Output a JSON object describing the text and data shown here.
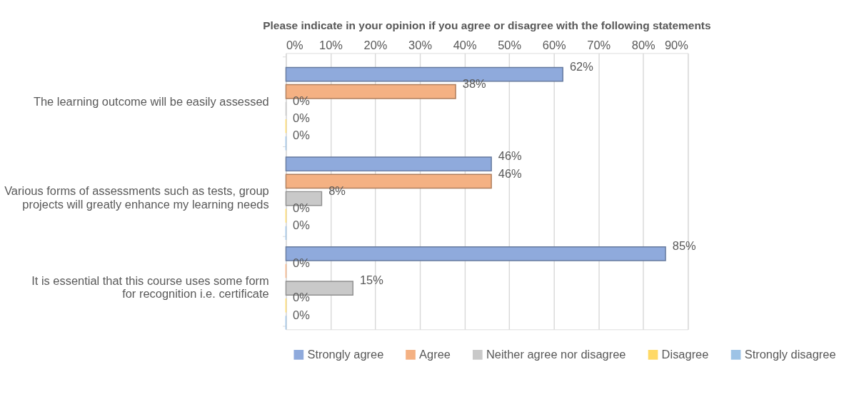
{
  "chart_data": {
    "type": "bar",
    "orientation": "horizontal",
    "title": "Please indicate in your opinion if you agree or disagree with the following statements",
    "categories": [
      "The learning outcome will be easily assessed",
      "Various forms of assessments such as tests, group projects will greatly enhance my learning needs",
      "It is essential that this course uses some form for recognition i.e. certificate"
    ],
    "series": [
      {
        "name": "Strongly agree",
        "color": "#8faadc",
        "values": [
          62,
          46,
          85
        ],
        "value_labels": [
          "62%",
          "46%",
          "85%"
        ]
      },
      {
        "name": "Agree",
        "color": "#f4b183",
        "values": [
          38,
          46,
          0
        ],
        "value_labels": [
          "38%",
          "46%",
          "0%"
        ]
      },
      {
        "name": "Neither agree nor disagree",
        "color": "#c9c9c9",
        "values": [
          0,
          8,
          15
        ],
        "value_labels": [
          "0%",
          "8%",
          "15%"
        ]
      },
      {
        "name": "Disagree",
        "color": "#ffd966",
        "values": [
          0,
          0,
          0
        ],
        "value_labels": [
          "0%",
          "0%",
          "0%"
        ]
      },
      {
        "name": "Strongly disagree",
        "color": "#9dc3e6",
        "values": [
          0,
          0,
          0
        ],
        "value_labels": [
          "0%",
          "0%",
          "0%"
        ]
      }
    ],
    "xlim": [
      0,
      90
    ],
    "xticks": [
      {
        "value": 0,
        "label": "0%"
      },
      {
        "value": 10,
        "label": "10%"
      },
      {
        "value": 20,
        "label": "20%"
      },
      {
        "value": 30,
        "label": "30%"
      },
      {
        "value": 40,
        "label": "40%"
      },
      {
        "value": 50,
        "label": "50%"
      },
      {
        "value": 60,
        "label": "60%"
      },
      {
        "value": 70,
        "label": "70%"
      },
      {
        "value": 80,
        "label": "80%"
      },
      {
        "value": 90,
        "label": "90%"
      }
    ],
    "grid": "x",
    "legend": "bottom"
  }
}
